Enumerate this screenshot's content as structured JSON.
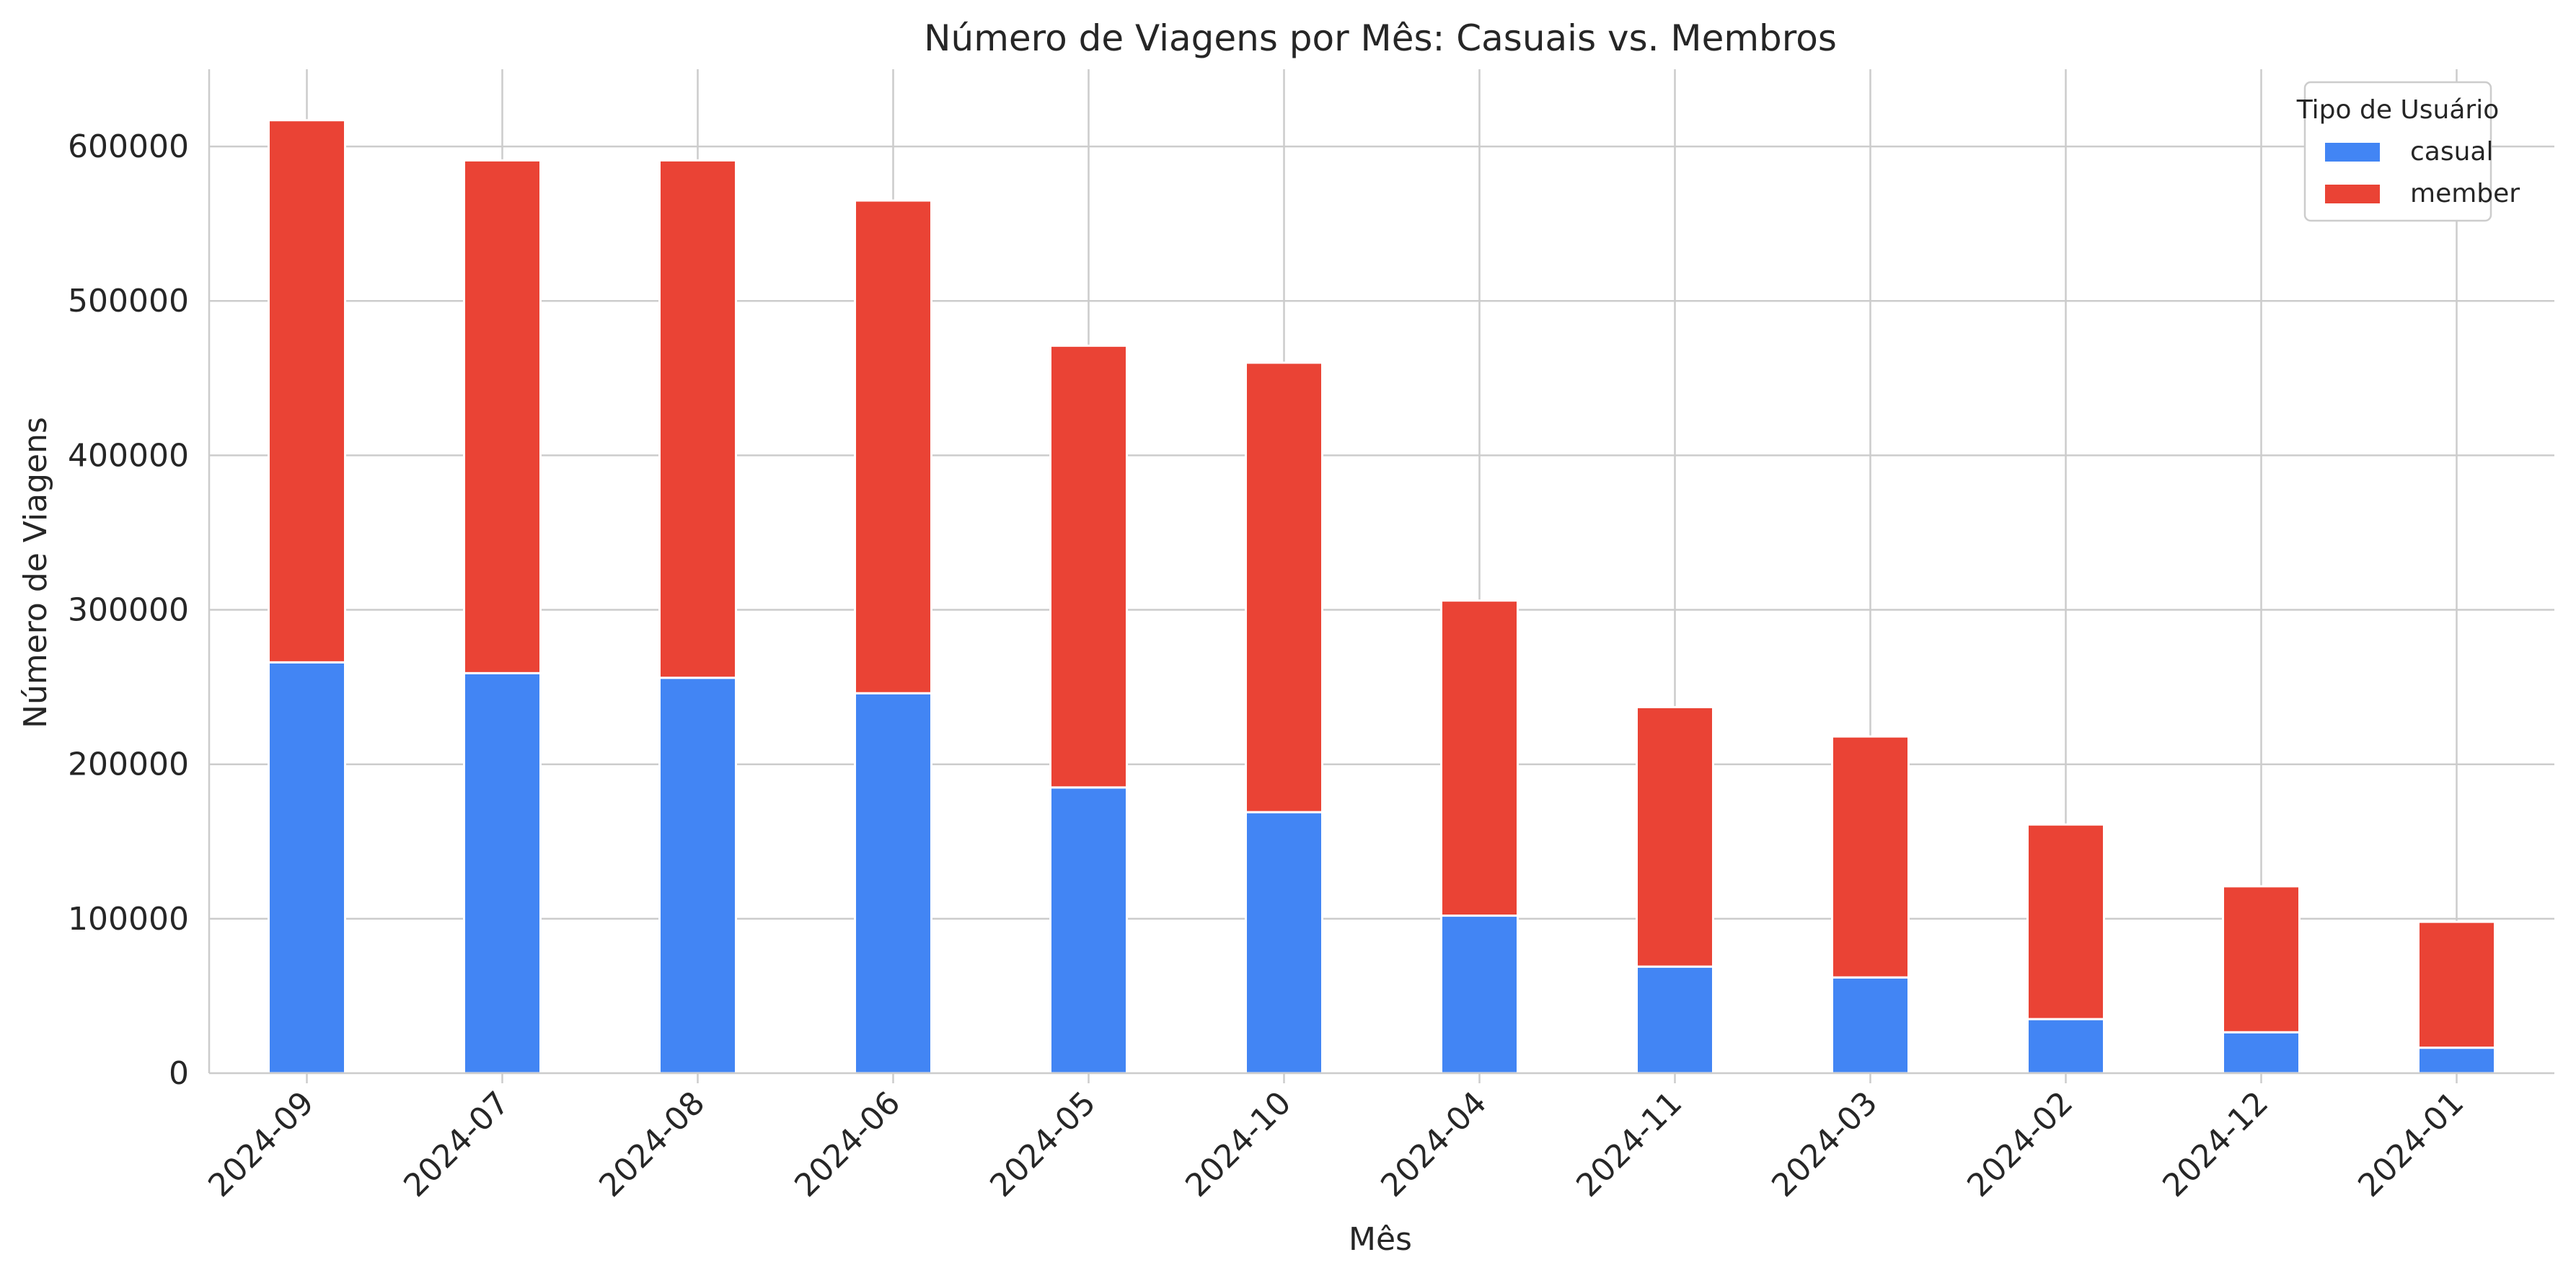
{
  "chart_data": {
    "type": "bar",
    "stacked": true,
    "title": "Número de Viagens por Mês: Casuais vs. Membros",
    "xlabel": "Mês",
    "ylabel": "Número de Viagens",
    "categories": [
      "2024-09",
      "2024-07",
      "2024-08",
      "2024-06",
      "2024-05",
      "2024-10",
      "2024-04",
      "2024-11",
      "2024-03",
      "2024-02",
      "2024-12",
      "2024-01"
    ],
    "series": [
      {
        "name": "casual",
        "color": "#4285f4",
        "values": [
          266000,
          259000,
          256000,
          246000,
          185000,
          169000,
          102000,
          69000,
          62000,
          35000,
          26500,
          16500
        ]
      },
      {
        "name": "member",
        "color": "#ea4335",
        "values": [
          351000,
          332000,
          335000,
          319000,
          286000,
          291000,
          204000,
          168000,
          156000,
          126000,
          94500,
          81500
        ]
      }
    ],
    "ylim": [
      0,
      650000
    ],
    "yticks": [
      0,
      100000,
      200000,
      300000,
      400000,
      500000,
      600000
    ],
    "ytick_labels": [
      "0",
      "100000",
      "200000",
      "300000",
      "400000",
      "500000",
      "600000"
    ],
    "grid": true,
    "legend": {
      "title": "Tipo de Usuário",
      "position": "top-right"
    }
  }
}
